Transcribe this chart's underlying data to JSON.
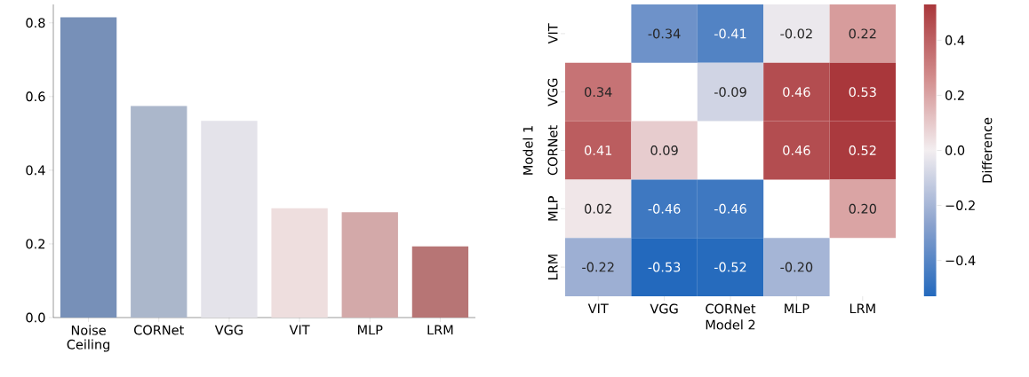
{
  "chart_data": [
    {
      "type": "bar",
      "categories": [
        "Noise Ceiling",
        "CORNet",
        "VGG",
        "VIT",
        "MLP",
        "LRM"
      ],
      "values": [
        0.815,
        0.574,
        0.534,
        0.297,
        0.286,
        0.193
      ],
      "colors": [
        "#7790b8",
        "#abb7cb",
        "#e4e3ea",
        "#eedede",
        "#d3a9a9",
        "#b77575"
      ],
      "ylim": [
        0,
        0.85
      ],
      "yticks": [
        {
          "value": 0,
          "label": "0.0"
        },
        0.2,
        0.4,
        0.6,
        0.8
      ]
    },
    {
      "type": "heatmap",
      "xlabel": "Model 2",
      "ylabel": "Model 1",
      "clabel": "Difference",
      "categories": [
        "VIT",
        "VGG",
        "CORNet",
        "MLP",
        "LRM"
      ],
      "y_categories": [
        "VIT",
        "VGG",
        "CORNet",
        "MLP",
        "LRM"
      ],
      "cells": [
        [
          null,
          -0.34,
          -0.41,
          -0.02,
          0.22
        ],
        [
          0.34,
          null,
          -0.09,
          0.46,
          0.53
        ],
        [
          0.41,
          0.09,
          null,
          0.46,
          0.52
        ],
        [
          0.02,
          -0.46,
          -0.46,
          null,
          0.2
        ],
        [
          -0.22,
          -0.53,
          -0.52,
          -0.2,
          null
        ]
      ],
      "cell_labels": [
        [
          null,
          "-0.34",
          "-0.41",
          "-0.02",
          "0.22"
        ],
        [
          "0.34",
          null,
          "-0.09",
          "0.46",
          "0.53"
        ],
        [
          "0.41",
          "0.09",
          null,
          "0.46",
          "0.52"
        ],
        [
          "0.02",
          "-0.46",
          "-0.46",
          null,
          "0.20"
        ],
        [
          "-0.22",
          "-0.53",
          "-0.52",
          "-0.20",
          null
        ]
      ],
      "clim": [
        -0.53,
        0.53
      ],
      "cticks": [
        {
          "value": -0.4,
          "label": "−0.4"
        },
        {
          "value": -0.2,
          "label": "−0.2"
        },
        {
          "value": 0,
          "label": "0.0"
        },
        0.2,
        0.4
      ]
    }
  ]
}
